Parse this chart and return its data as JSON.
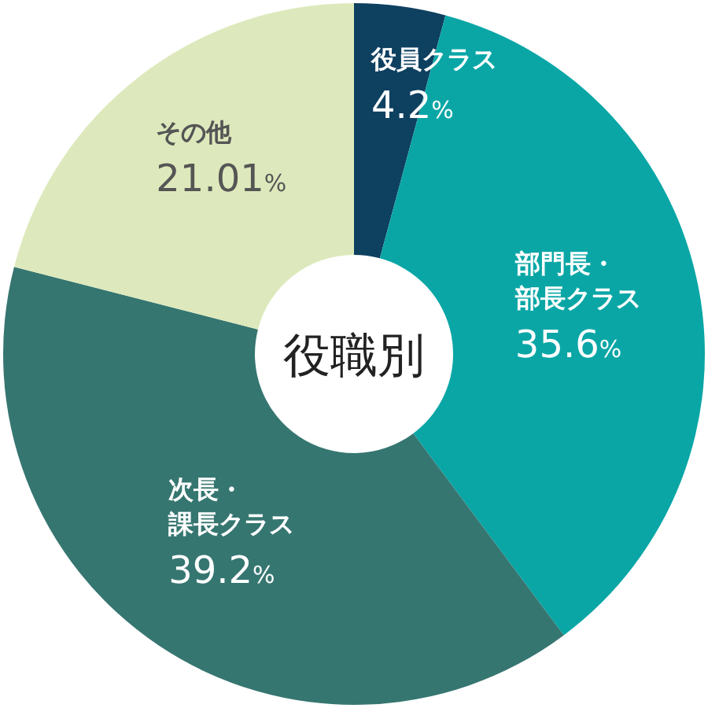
{
  "chart_data": {
    "type": "donut",
    "title": "役職別",
    "categories": [
      "役員クラス",
      "部門長・部長クラス",
      "次長・課長クラス",
      "その他"
    ],
    "values": [
      4.2,
      35.6,
      39.2,
      21.01
    ],
    "colors": [
      "#0e4060",
      "#0aa6a6",
      "#367671",
      "#dde9bc"
    ],
    "value_labels": [
      "4.2%",
      "35.6%",
      "39.2%",
      "21.01%"
    ]
  }
}
